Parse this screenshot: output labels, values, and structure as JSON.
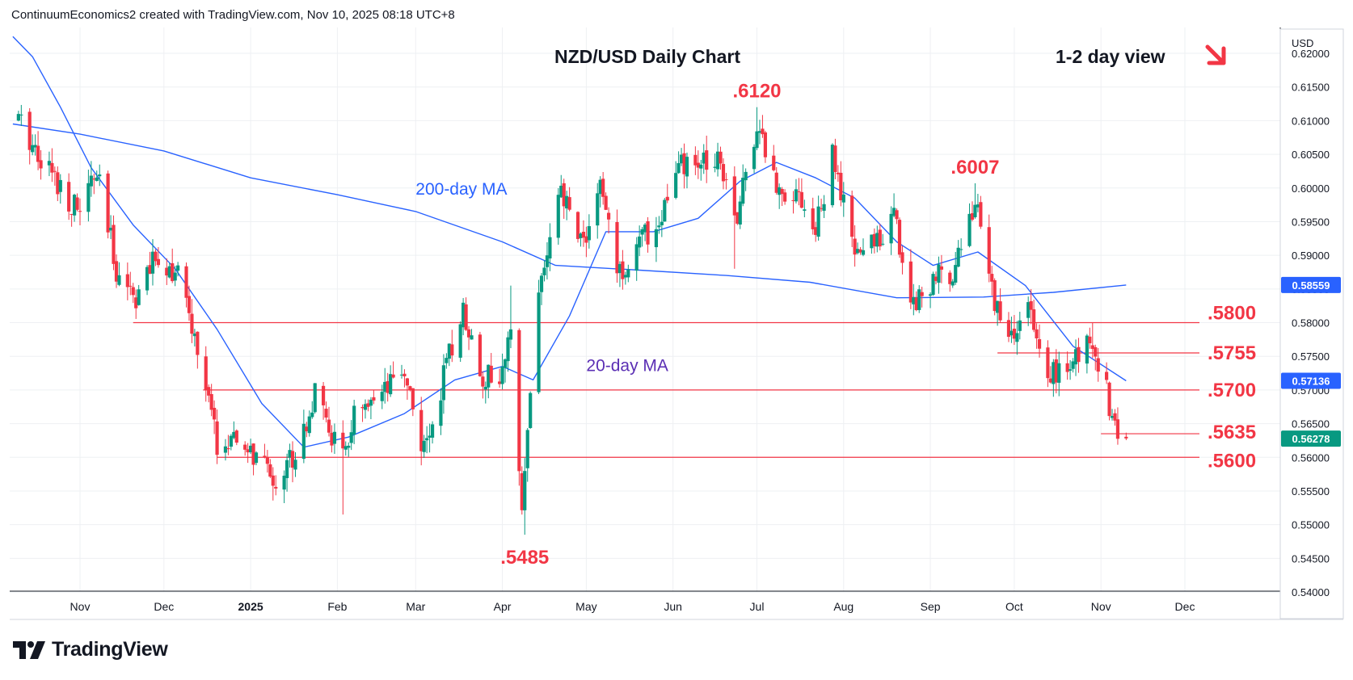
{
  "header": {
    "attribution": "ContinuumEconomics2 created with TradingView.com, Nov 10, 2025 08:18 UTC+8"
  },
  "footer": {
    "brand": "TradingView"
  },
  "colors": {
    "up": "#089981",
    "down": "#f23645",
    "level_line": "#f23645",
    "label_red": "#f23645",
    "ma20": "#2962ff",
    "ma200": "#2962ff",
    "ma20_label": "#5b2fb4",
    "ma200_label": "#2962ff",
    "grid": "#eef0f3",
    "axis_text": "#131722",
    "price_tag_bg": "#131722",
    "ma200_tag_bg": "#2962ff",
    "ma20_tag_bg": "#2962ff",
    "last_price_tag_bg": "#089981"
  },
  "chart_data": {
    "type": "candlestick",
    "title": "NZD/USD Daily Chart",
    "view_label": "1-2 day view",
    "view_direction": "down",
    "currency": "USD",
    "x_ticks": [
      "Nov",
      "Dec",
      "2025",
      "Feb",
      "Mar",
      "Apr",
      "May",
      "Jun",
      "Jul",
      "Aug",
      "Sep",
      "Oct",
      "Nov",
      "Dec"
    ],
    "y_ticks": [
      "0.62000",
      "0.61500",
      "0.61000",
      "0.60500",
      "0.60000",
      "0.59500",
      "0.59000",
      "0.58500",
      "0.58000",
      "0.57500",
      "0.57000",
      "0.56500",
      "0.56000",
      "0.55500",
      "0.55000",
      "0.54500",
      "0.54000"
    ],
    "ylim": [
      0.5397,
      0.6237
    ],
    "levels": [
      {
        "label": ".5800",
        "value": 0.58
      },
      {
        "label": ".5755",
        "value": 0.5755
      },
      {
        "label": ".5700",
        "value": 0.57
      },
      {
        "label": ".5635",
        "value": 0.5635
      },
      {
        "label": ".5600",
        "value": 0.56
      }
    ],
    "annotations": [
      {
        "label": ".6120",
        "date": "2025-07-01",
        "value": 0.612
      },
      {
        "label": ".6007",
        "date": "2025-09-17",
        "value": 0.6007
      },
      {
        "label": ".5485",
        "date": "2025-04-09",
        "value": 0.5485
      },
      {
        "label": "200-day MA",
        "date": "2025-03-01",
        "value": 0.599
      },
      {
        "label": "20-day MA",
        "date": "2025-05-01",
        "value": 0.5728
      }
    ],
    "price_tags": [
      {
        "label": "0.58559",
        "value": 0.58559,
        "kind": "ma200"
      },
      {
        "label": "0.57136",
        "value": 0.57136,
        "kind": "ma20"
      },
      {
        "label": "0.56278",
        "value": 0.56278,
        "kind": "last"
      }
    ],
    "anchors": [
      [
        "2024-10-10",
        0.61
      ],
      [
        "2024-10-20",
        0.6035
      ],
      [
        "2024-10-31",
        0.5965
      ],
      [
        "2024-11-07",
        0.602
      ],
      [
        "2024-11-14",
        0.588
      ],
      [
        "2024-11-21",
        0.584
      ],
      [
        "2024-11-25",
        0.587
      ],
      [
        "2024-11-29",
        0.59
      ],
      [
        "2024-12-06",
        0.587
      ],
      [
        "2024-12-13",
        0.576
      ],
      [
        "2024-12-20",
        0.562
      ],
      [
        "2024-12-30",
        0.5615
      ],
      [
        "2025-01-10",
        0.5565
      ],
      [
        "2025-01-17",
        0.561
      ],
      [
        "2025-01-24",
        0.569
      ],
      [
        "2025-02-03",
        0.5595
      ],
      [
        "2025-02-07",
        0.566
      ],
      [
        "2025-02-14",
        0.567
      ],
      [
        "2025-02-25",
        0.573
      ],
      [
        "2025-03-04",
        0.5605
      ],
      [
        "2025-03-11",
        0.572
      ],
      [
        "2025-03-18",
        0.582
      ],
      [
        "2025-03-25",
        0.572
      ],
      [
        "2025-04-01",
        0.572
      ],
      [
        "2025-04-04",
        0.578
      ],
      [
        "2025-04-08",
        0.554
      ],
      [
        "2025-04-14",
        0.585
      ],
      [
        "2025-04-22",
        0.599
      ],
      [
        "2025-04-30",
        0.592
      ],
      [
        "2025-05-06",
        0.6
      ],
      [
        "2025-05-13",
        0.587
      ],
      [
        "2025-05-20",
        0.592
      ],
      [
        "2025-05-27",
        0.595
      ],
      [
        "2025-06-03",
        0.603
      ],
      [
        "2025-06-10",
        0.603
      ],
      [
        "2025-06-17",
        0.6055
      ],
      [
        "2025-06-24",
        0.596
      ],
      [
        "2025-07-01",
        0.61
      ],
      [
        "2025-07-08",
        0.6
      ],
      [
        "2025-07-15",
        0.6
      ],
      [
        "2025-07-22",
        0.5935
      ],
      [
        "2025-07-28",
        0.6045
      ],
      [
        "2025-08-05",
        0.59
      ],
      [
        "2025-08-12",
        0.592
      ],
      [
        "2025-08-19",
        0.596
      ],
      [
        "2025-08-25",
        0.583
      ],
      [
        "2025-09-02",
        0.586
      ],
      [
        "2025-09-09",
        0.588
      ],
      [
        "2025-09-17",
        0.598
      ],
      [
        "2025-09-23",
        0.585
      ],
      [
        "2025-09-29",
        0.577
      ],
      [
        "2025-10-06",
        0.582
      ],
      [
        "2025-10-10",
        0.575
      ],
      [
        "2025-10-16",
        0.572
      ],
      [
        "2025-10-22",
        0.574
      ],
      [
        "2025-10-29",
        0.578
      ],
      [
        "2025-11-04",
        0.568
      ],
      [
        "2025-11-06",
        0.564
      ],
      [
        "2025-11-10",
        0.5628
      ]
    ],
    "ma200": [
      [
        "2024-10-08",
        0.6095
      ],
      [
        "2024-11-01",
        0.608
      ],
      [
        "2024-12-01",
        0.6055
      ],
      [
        "2025-01-01",
        0.6015
      ],
      [
        "2025-02-01",
        0.599
      ],
      [
        "2025-03-01",
        0.5965
      ],
      [
        "2025-04-01",
        0.592
      ],
      [
        "2025-04-20",
        0.5885
      ],
      [
        "2025-05-20",
        0.5878
      ],
      [
        "2025-06-20",
        0.587
      ],
      [
        "2025-07-20",
        0.586
      ],
      [
        "2025-08-20",
        0.5837
      ],
      [
        "2025-09-20",
        0.5838
      ],
      [
        "2025-10-15",
        0.5845
      ],
      [
        "2025-11-10",
        0.58559
      ]
    ],
    "ma20": [
      [
        "2024-10-08",
        0.6225
      ],
      [
        "2024-10-15",
        0.6195
      ],
      [
        "2024-10-25",
        0.612
      ],
      [
        "2024-11-05",
        0.603
      ],
      [
        "2024-11-20",
        0.5945
      ],
      [
        "2024-12-05",
        0.588
      ],
      [
        "2024-12-20",
        0.579
      ],
      [
        "2025-01-05",
        0.568
      ],
      [
        "2025-01-20",
        0.5615
      ],
      [
        "2025-02-05",
        0.563
      ],
      [
        "2025-02-25",
        0.5665
      ],
      [
        "2025-03-15",
        0.5715
      ],
      [
        "2025-04-01",
        0.5735
      ],
      [
        "2025-04-12",
        0.5715
      ],
      [
        "2025-04-25",
        0.581
      ],
      [
        "2025-05-08",
        0.5935
      ],
      [
        "2025-05-25",
        0.5935
      ],
      [
        "2025-06-10",
        0.5955
      ],
      [
        "2025-06-25",
        0.601
      ],
      [
        "2025-07-08",
        0.6038
      ],
      [
        "2025-07-22",
        0.6015
      ],
      [
        "2025-08-05",
        0.5985
      ],
      [
        "2025-08-20",
        0.592
      ],
      [
        "2025-09-02",
        0.5885
      ],
      [
        "2025-09-18",
        0.5905
      ],
      [
        "2025-10-05",
        0.5855
      ],
      [
        "2025-10-22",
        0.5765
      ],
      [
        "2025-11-10",
        0.57136
      ]
    ],
    "candle_seed": 17
  }
}
